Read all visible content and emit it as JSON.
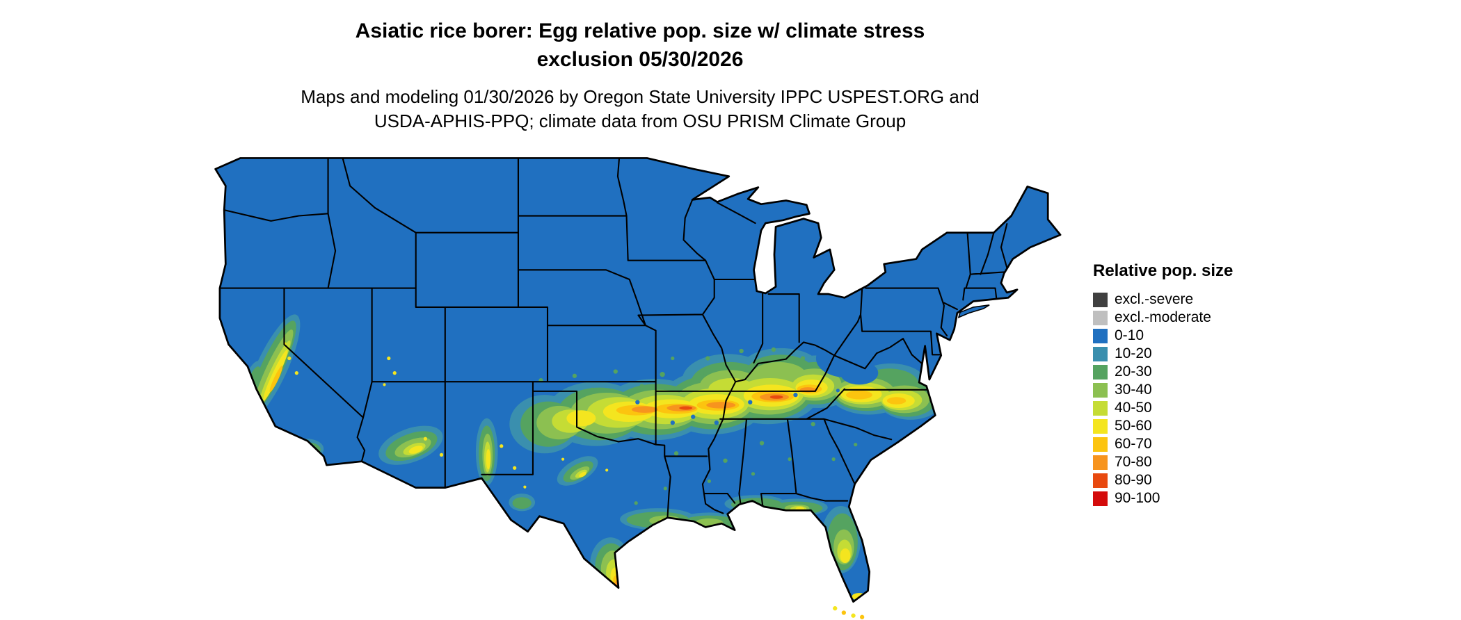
{
  "header": {
    "title_line1": "Asiatic rice borer: Egg relative pop. size w/ climate stress",
    "title_line2": "exclusion 05/30/2026",
    "subtitle_line1": "Maps and modeling 01/30/2026 by Oregon State University IPPC USPEST.ORG and",
    "subtitle_line2": "USDA-APHIS-PPQ; climate data from OSU PRISM Climate Group"
  },
  "legend": {
    "title": "Relative pop. size",
    "items": [
      {
        "label": "excl.-severe",
        "color": "#404040"
      },
      {
        "label": "excl.-moderate",
        "color": "#bfbfbf"
      },
      {
        "label": "0-10",
        "color": "#2070c0"
      },
      {
        "label": "10-20",
        "color": "#3a8fae"
      },
      {
        "label": "20-30",
        "color": "#55a360"
      },
      {
        "label": "30-40",
        "color": "#8cc051"
      },
      {
        "label": "40-50",
        "color": "#c5dc35"
      },
      {
        "label": "50-60",
        "color": "#f4e51f"
      },
      {
        "label": "60-70",
        "color": "#fcc40f"
      },
      {
        "label": "70-80",
        "color": "#f7941e"
      },
      {
        "label": "80-90",
        "color": "#e8490f"
      },
      {
        "label": "90-100",
        "color": "#d40b0b"
      }
    ]
  }
}
